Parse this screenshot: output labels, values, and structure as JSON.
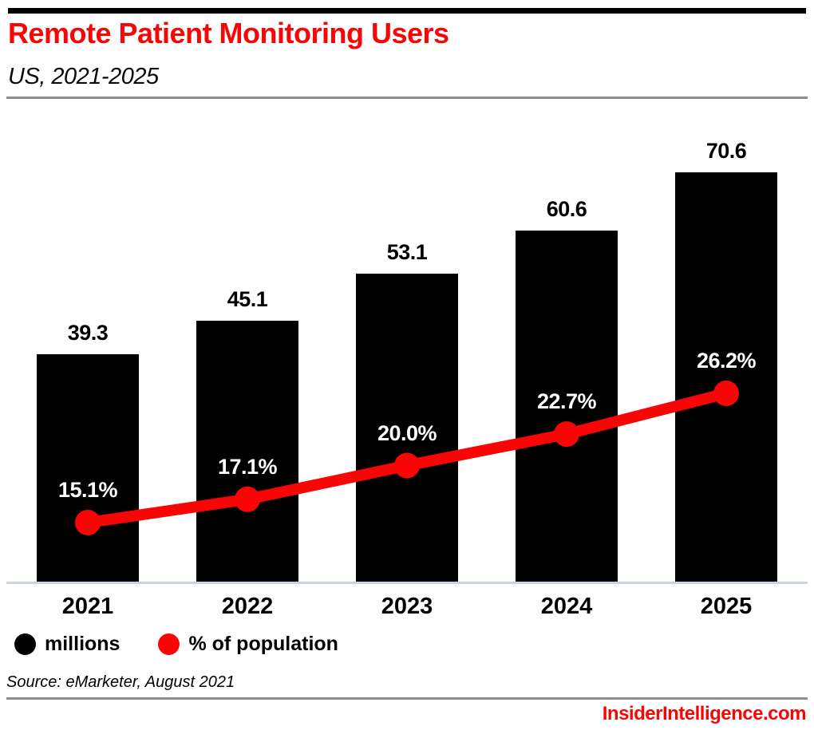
{
  "header": {
    "title": "Remote Patient Monitoring Users",
    "subtitle": "US, 2021-2025"
  },
  "chart_data": {
    "type": "bar",
    "combo": "bar+line",
    "title": "Remote Patient Monitoring Users",
    "subtitle": "US, 2021-2025",
    "categories": [
      "2021",
      "2022",
      "2023",
      "2024",
      "2025"
    ],
    "series": [
      {
        "name": "millions",
        "type": "bar",
        "color": "#000000",
        "values": [
          39.3,
          45.1,
          53.1,
          60.6,
          70.6
        ],
        "labels": [
          "39.3",
          "45.1",
          "53.1",
          "60.6",
          "70.6"
        ]
      },
      {
        "name": "% of population",
        "type": "line",
        "color": "#fa0505",
        "values": [
          15.1,
          17.1,
          20.0,
          22.7,
          26.2
        ],
        "labels": [
          "15.1%",
          "17.1%",
          "20.0%",
          "22.7%",
          "26.2%"
        ]
      }
    ],
    "legend": {
      "position": "bottom-left",
      "items": [
        {
          "label": "millions",
          "color": "#000000"
        },
        {
          "label": "% of population",
          "color": "#fa0505"
        }
      ]
    },
    "value_axis": "hidden",
    "grid": false
  },
  "footer": {
    "source": "Source: eMarketer, August 2021",
    "site": "InsiderIntelligence.com"
  },
  "colors": {
    "accent_red": "#fa0505",
    "bar_black": "#000000",
    "axis_line": "#c9d4e2",
    "divider_gray": "#8c8c8c"
  }
}
